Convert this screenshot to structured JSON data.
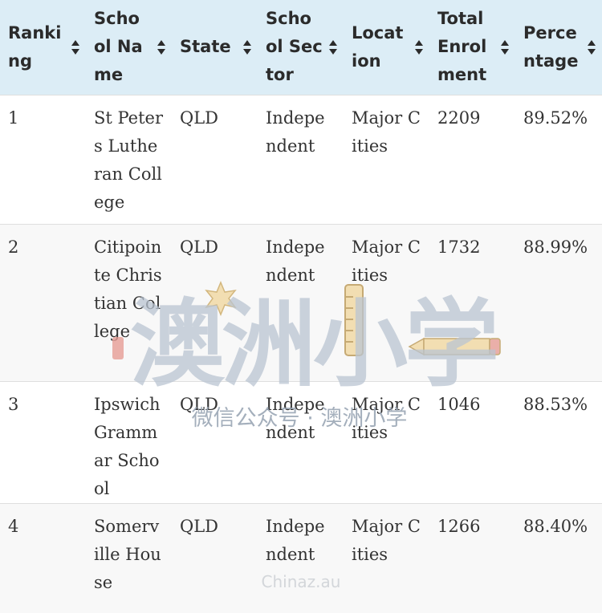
{
  "table": {
    "columns": [
      "Ranking",
      "School Name",
      "State",
      "School Sector",
      "Location",
      "Total Enrolment",
      "Percentage"
    ],
    "rows": [
      [
        "1",
        "St Peters Lutheran College",
        "QLD",
        "Independent",
        "Major Cities",
        "2209",
        "89.52%"
      ],
      [
        "2",
        "Citipointe Christian College",
        "QLD",
        "Independent",
        "Major Cities",
        "1732",
        "88.99%"
      ],
      [
        "3",
        "Ipswich Grammar School",
        "QLD",
        "Independent",
        "Major Cities",
        "1046",
        "88.53%"
      ],
      [
        "4",
        "Somerville House",
        "QLD",
        "Independent",
        "Major Cities",
        "1266",
        "88.40%"
      ]
    ]
  },
  "watermark": {
    "brand": "澳洲小学",
    "caption": "微信公众号 · 澳洲小学",
    "footer": "Chinaz.au",
    "color": "#b9c4d2"
  },
  "icons": {
    "sort": "sort-up-down-icon"
  }
}
